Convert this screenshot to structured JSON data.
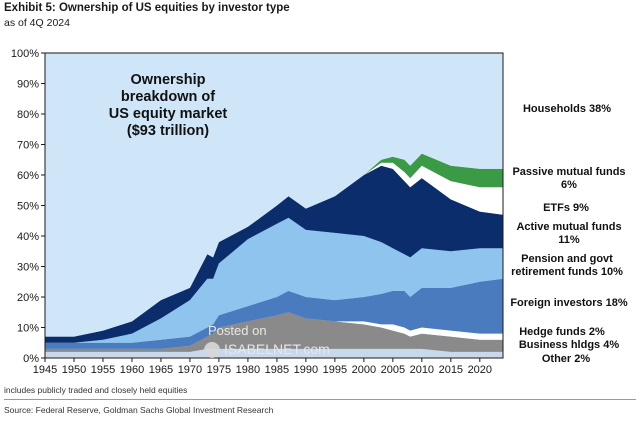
{
  "header": {
    "title": "Exhibit 5: Ownership of US equities by investor type",
    "subtitle": "as of 4Q 2024"
  },
  "footnote": "includes publicly traded and closely held equities",
  "source": "Source: Federal Reserve, Goldman Sachs Global Investment Research",
  "watermark": {
    "line1": "Posted on",
    "line2": "ISABELNET.com"
  },
  "colors": {
    "plot_background": "#cfe6f8",
    "other": "#c9d8ea",
    "business": "#8a8a8a",
    "hedge": "#ffffff",
    "foreign": "#4a7bbf",
    "pension": "#8ec4ee",
    "active": "#0b2d6b",
    "etf": "#ffffff",
    "passive": "#3a9a45"
  },
  "chart_data": {
    "type": "area",
    "stacked": true,
    "title": "",
    "annotation": [
      "Ownership",
      "breakdown  of",
      "US equity market",
      "($93 trillion)"
    ],
    "xlabel": "",
    "ylabel": "",
    "xlim": [
      1945,
      2024
    ],
    "ylim": [
      0,
      100
    ],
    "x_ticks": [
      "1945",
      "1950",
      "1955",
      "1960",
      "1965",
      "1970",
      "1975",
      "1980",
      "1985",
      "1990",
      "1995",
      "2000",
      "2005",
      "2010",
      "2015",
      "2020"
    ],
    "y_ticks": [
      "0%",
      "10%",
      "20%",
      "30%",
      "40%",
      "50%",
      "60%",
      "70%",
      "80%",
      "90%",
      "100%"
    ],
    "grid": false,
    "x": [
      1945,
      1950,
      1955,
      1960,
      1965,
      1970,
      1973,
      1974,
      1975,
      1980,
      1985,
      1987,
      1990,
      1995,
      2000,
      2003,
      2005,
      2007,
      2008,
      2010,
      2015,
      2020,
      2024
    ],
    "series": [
      {
        "name": "Other 2%",
        "key": "other",
        "values": [
          2,
          2,
          2,
          2,
          2,
          2,
          3,
          3,
          3,
          3,
          3,
          3,
          3,
          3,
          3,
          3,
          3,
          3,
          3,
          3,
          2,
          2,
          2
        ]
      },
      {
        "name": "Business hldgs 4%",
        "key": "business",
        "values": [
          1,
          1,
          1,
          1,
          1,
          2,
          4,
          5,
          7,
          9,
          11,
          12,
          10,
          9,
          8,
          7,
          6,
          5,
          4,
          5,
          5,
          4,
          4
        ]
      },
      {
        "name": "Hedge funds 2%",
        "key": "hedge",
        "values": [
          0,
          0,
          0,
          0,
          0,
          0,
          0,
          0,
          0,
          0,
          0,
          0,
          0,
          0,
          1,
          1,
          2,
          2,
          2,
          2,
          2,
          2,
          2
        ]
      },
      {
        "name": "Foreign investors 18%",
        "key": "foreign",
        "values": [
          2,
          2,
          2,
          2,
          3,
          3,
          3,
          3,
          4,
          5,
          6,
          7,
          7,
          7,
          8,
          10,
          11,
          12,
          11,
          13,
          14,
          17,
          18
        ]
      },
      {
        "name": "Pension and govt retirement funds 10%",
        "key": "pension",
        "values": [
          0,
          0,
          1,
          3,
          7,
          12,
          16,
          15,
          17,
          22,
          24,
          24,
          22,
          22,
          20,
          17,
          14,
          12,
          13,
          13,
          12,
          11,
          10
        ]
      },
      {
        "name": "Active mutual funds 11%",
        "key": "active",
        "values": [
          2,
          2,
          3,
          4,
          6,
          4,
          8,
          7,
          7,
          4,
          6,
          7,
          7,
          12,
          20,
          25,
          26,
          24,
          23,
          23,
          17,
          12,
          11
        ]
      },
      {
        "name": "ETFs 9%",
        "key": "etf",
        "values": [
          0,
          0,
          0,
          0,
          0,
          0,
          0,
          0,
          0,
          0,
          0,
          0,
          0,
          0,
          0,
          1,
          2,
          3,
          3,
          4,
          6,
          8,
          9
        ]
      },
      {
        "name": "Passive mutual funds 6%",
        "key": "passive",
        "values": [
          0,
          0,
          0,
          0,
          0,
          0,
          0,
          0,
          0,
          0,
          0,
          0,
          0,
          0,
          0,
          1,
          2,
          4,
          4,
          4,
          5,
          6,
          6
        ]
      },
      {
        "name": "Households 38%",
        "key": "households",
        "values": [
          93,
          93,
          93,
          88,
          81,
          77,
          66,
          67,
          62,
          57,
          50,
          47,
          51,
          47,
          40,
          35,
          34,
          35,
          37,
          33,
          37,
          38,
          38
        ]
      }
    ],
    "series_labels": [
      {
        "key": "households",
        "lines": [
          "Households 38%"
        ]
      },
      {
        "key": "passive",
        "lines": [
          "Passive mutual funds",
          "6%"
        ]
      },
      {
        "key": "etf",
        "lines": [
          "ETFs 9%"
        ]
      },
      {
        "key": "active",
        "lines": [
          "Active mutual funds",
          "11%"
        ]
      },
      {
        "key": "pension",
        "lines": [
          "Pension and govt",
          "retirement funds 10%"
        ]
      },
      {
        "key": "foreign",
        "lines": [
          "Foreign investors 18%"
        ]
      },
      {
        "key": "hedge",
        "lines": [
          "Hedge funds 2%"
        ]
      },
      {
        "key": "business",
        "lines": [
          "Business hldgs 4%"
        ]
      },
      {
        "key": "other",
        "lines": [
          "Other 2%"
        ]
      }
    ]
  }
}
